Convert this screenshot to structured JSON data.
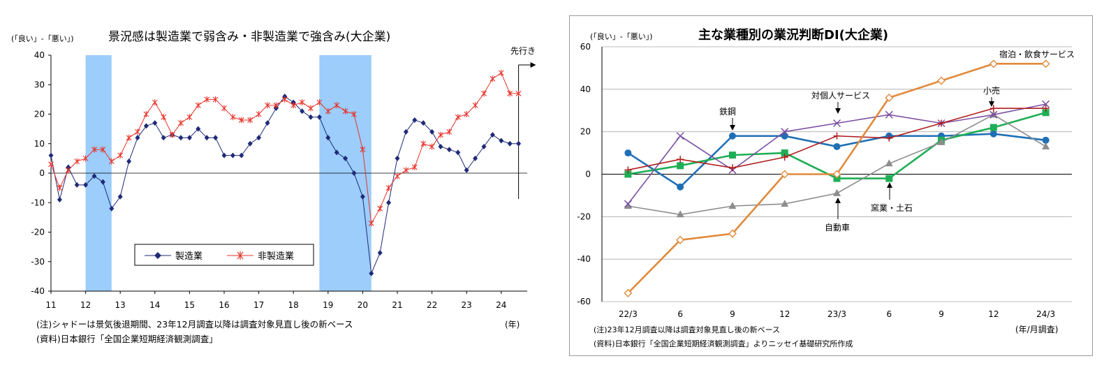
{
  "left_chart": {
    "title": "景況感は製造業で弱含み・非製造業で強含み(大企業)",
    "unit_label": "(「良い」-「悪い」)",
    "x_unit": "(年)",
    "forecast_label": "先行き",
    "note": "(注)シャドーは景気後退期間、23年12月調査以降は調査対象見直し後の新ベース",
    "source": "(資料)日本銀行「全国企業短期経済観測調査」"
  },
  "right_chart": {
    "title": "主な業種別の業況判断DI(大企業)",
    "unit_label": "(「良い」-「悪い」)",
    "x_unit": "(年/月調査)",
    "note": "(注)23年12月調査以降は調査対象見直し後の新ベース",
    "source": "(資料)日本銀行「全国企業短期経済観測調査」よりニッセイ基礎研究所作成"
  },
  "chart_data": [
    {
      "type": "line",
      "ylim": [
        -40,
        40
      ],
      "yticks": [
        -40,
        -30,
        -20,
        -10,
        0,
        10,
        20,
        30,
        40
      ],
      "xlim": [
        2011,
        2024.75
      ],
      "xticks": [
        "11",
        "12",
        "13",
        "14",
        "15",
        "16",
        "17",
        "18",
        "19",
        "20",
        "21",
        "22",
        "23",
        "24"
      ],
      "grid": false,
      "legend_position": "bottom-center",
      "recession_shading": [
        [
          2012.0,
          2012.75
        ],
        [
          2018.75,
          2020.25
        ]
      ],
      "forecast_start": 2024.5,
      "x": [
        2011.0,
        2011.25,
        2011.5,
        2011.75,
        2012.0,
        2012.25,
        2012.5,
        2012.75,
        2013.0,
        2013.25,
        2013.5,
        2013.75,
        2014.0,
        2014.25,
        2014.5,
        2014.75,
        2015.0,
        2015.25,
        2015.5,
        2015.75,
        2016.0,
        2016.25,
        2016.5,
        2016.75,
        2017.0,
        2017.25,
        2017.5,
        2017.75,
        2018.0,
        2018.25,
        2018.5,
        2018.75,
        2019.0,
        2019.25,
        2019.5,
        2019.75,
        2020.0,
        2020.25,
        2020.5,
        2020.75,
        2021.0,
        2021.25,
        2021.5,
        2021.75,
        2022.0,
        2022.25,
        2022.5,
        2022.75,
        2023.0,
        2023.25,
        2023.5,
        2023.75,
        2024.0,
        2024.25,
        2024.5
      ],
      "series": [
        {
          "name": "製造業",
          "color": "#1f2a78",
          "marker": "diamond",
          "values": [
            6,
            -9,
            2,
            -4,
            -4,
            -1,
            -3,
            -12,
            -8,
            4,
            12,
            16,
            17,
            12,
            13,
            12,
            12,
            15,
            12,
            12,
            6,
            6,
            6,
            10,
            12,
            17,
            22,
            26,
            24,
            21,
            19,
            19,
            12,
            7,
            5,
            0,
            -8,
            -34,
            -27,
            -10,
            5,
            14,
            18,
            17,
            14,
            9,
            8,
            7,
            1,
            5,
            9,
            13,
            11,
            10,
            10
          ]
        },
        {
          "name": "非製造業",
          "color": "#e8332b",
          "marker": "asterisk",
          "values": [
            3,
            -5,
            1,
            4,
            5,
            8,
            8,
            4,
            6,
            12,
            14,
            20,
            24,
            19,
            13,
            17,
            19,
            23,
            25,
            25,
            22,
            19,
            18,
            18,
            20,
            23,
            23,
            25,
            23,
            24,
            22,
            24,
            21,
            23,
            21,
            20,
            8,
            -17,
            -12,
            -5,
            -1,
            1,
            2,
            10,
            9,
            13,
            14,
            19,
            20,
            23,
            27,
            32,
            34,
            27,
            27
          ]
        }
      ]
    },
    {
      "type": "line",
      "ylim": [
        -60,
        60
      ],
      "yticks": [
        -60,
        -40,
        -20,
        0,
        20,
        40,
        60
      ],
      "categories": [
        "22/3",
        "6",
        "9",
        "12",
        "23/3",
        "6",
        "9",
        "12",
        "24/3"
      ],
      "grid": true,
      "series": [
        {
          "name": "鉄鋼",
          "color": "#1f6fb5",
          "marker": "circle",
          "values": [
            10,
            -6,
            18,
            18,
            13,
            18,
            18,
            19,
            16
          ]
        },
        {
          "name": "窯業・土石",
          "color": "#1eae55",
          "marker": "square",
          "values": [
            0,
            4,
            9,
            10,
            -2,
            -2,
            16,
            22,
            29
          ]
        },
        {
          "name": "自動車",
          "color": "#8d8d8d",
          "marker": "triangle",
          "values": [
            -15,
            -19,
            -15,
            -14,
            -9,
            5,
            15,
            28,
            13
          ]
        },
        {
          "name": "対個人サービス",
          "color": "#7b4fa3",
          "marker": "x",
          "values": [
            -14,
            18,
            2,
            20,
            24,
            28,
            24,
            28,
            33
          ]
        },
        {
          "name": "小売",
          "color": "#b01e1e",
          "marker": "plus",
          "values": [
            2,
            7,
            3,
            8,
            18,
            17,
            24,
            31,
            31
          ]
        },
        {
          "name": "宿泊・飲食サービス",
          "color": "#e08a3c",
          "marker": "diamond-open",
          "values": [
            -56,
            -31,
            -28,
            0,
            0,
            36,
            44,
            52,
            52
          ]
        }
      ]
    }
  ]
}
